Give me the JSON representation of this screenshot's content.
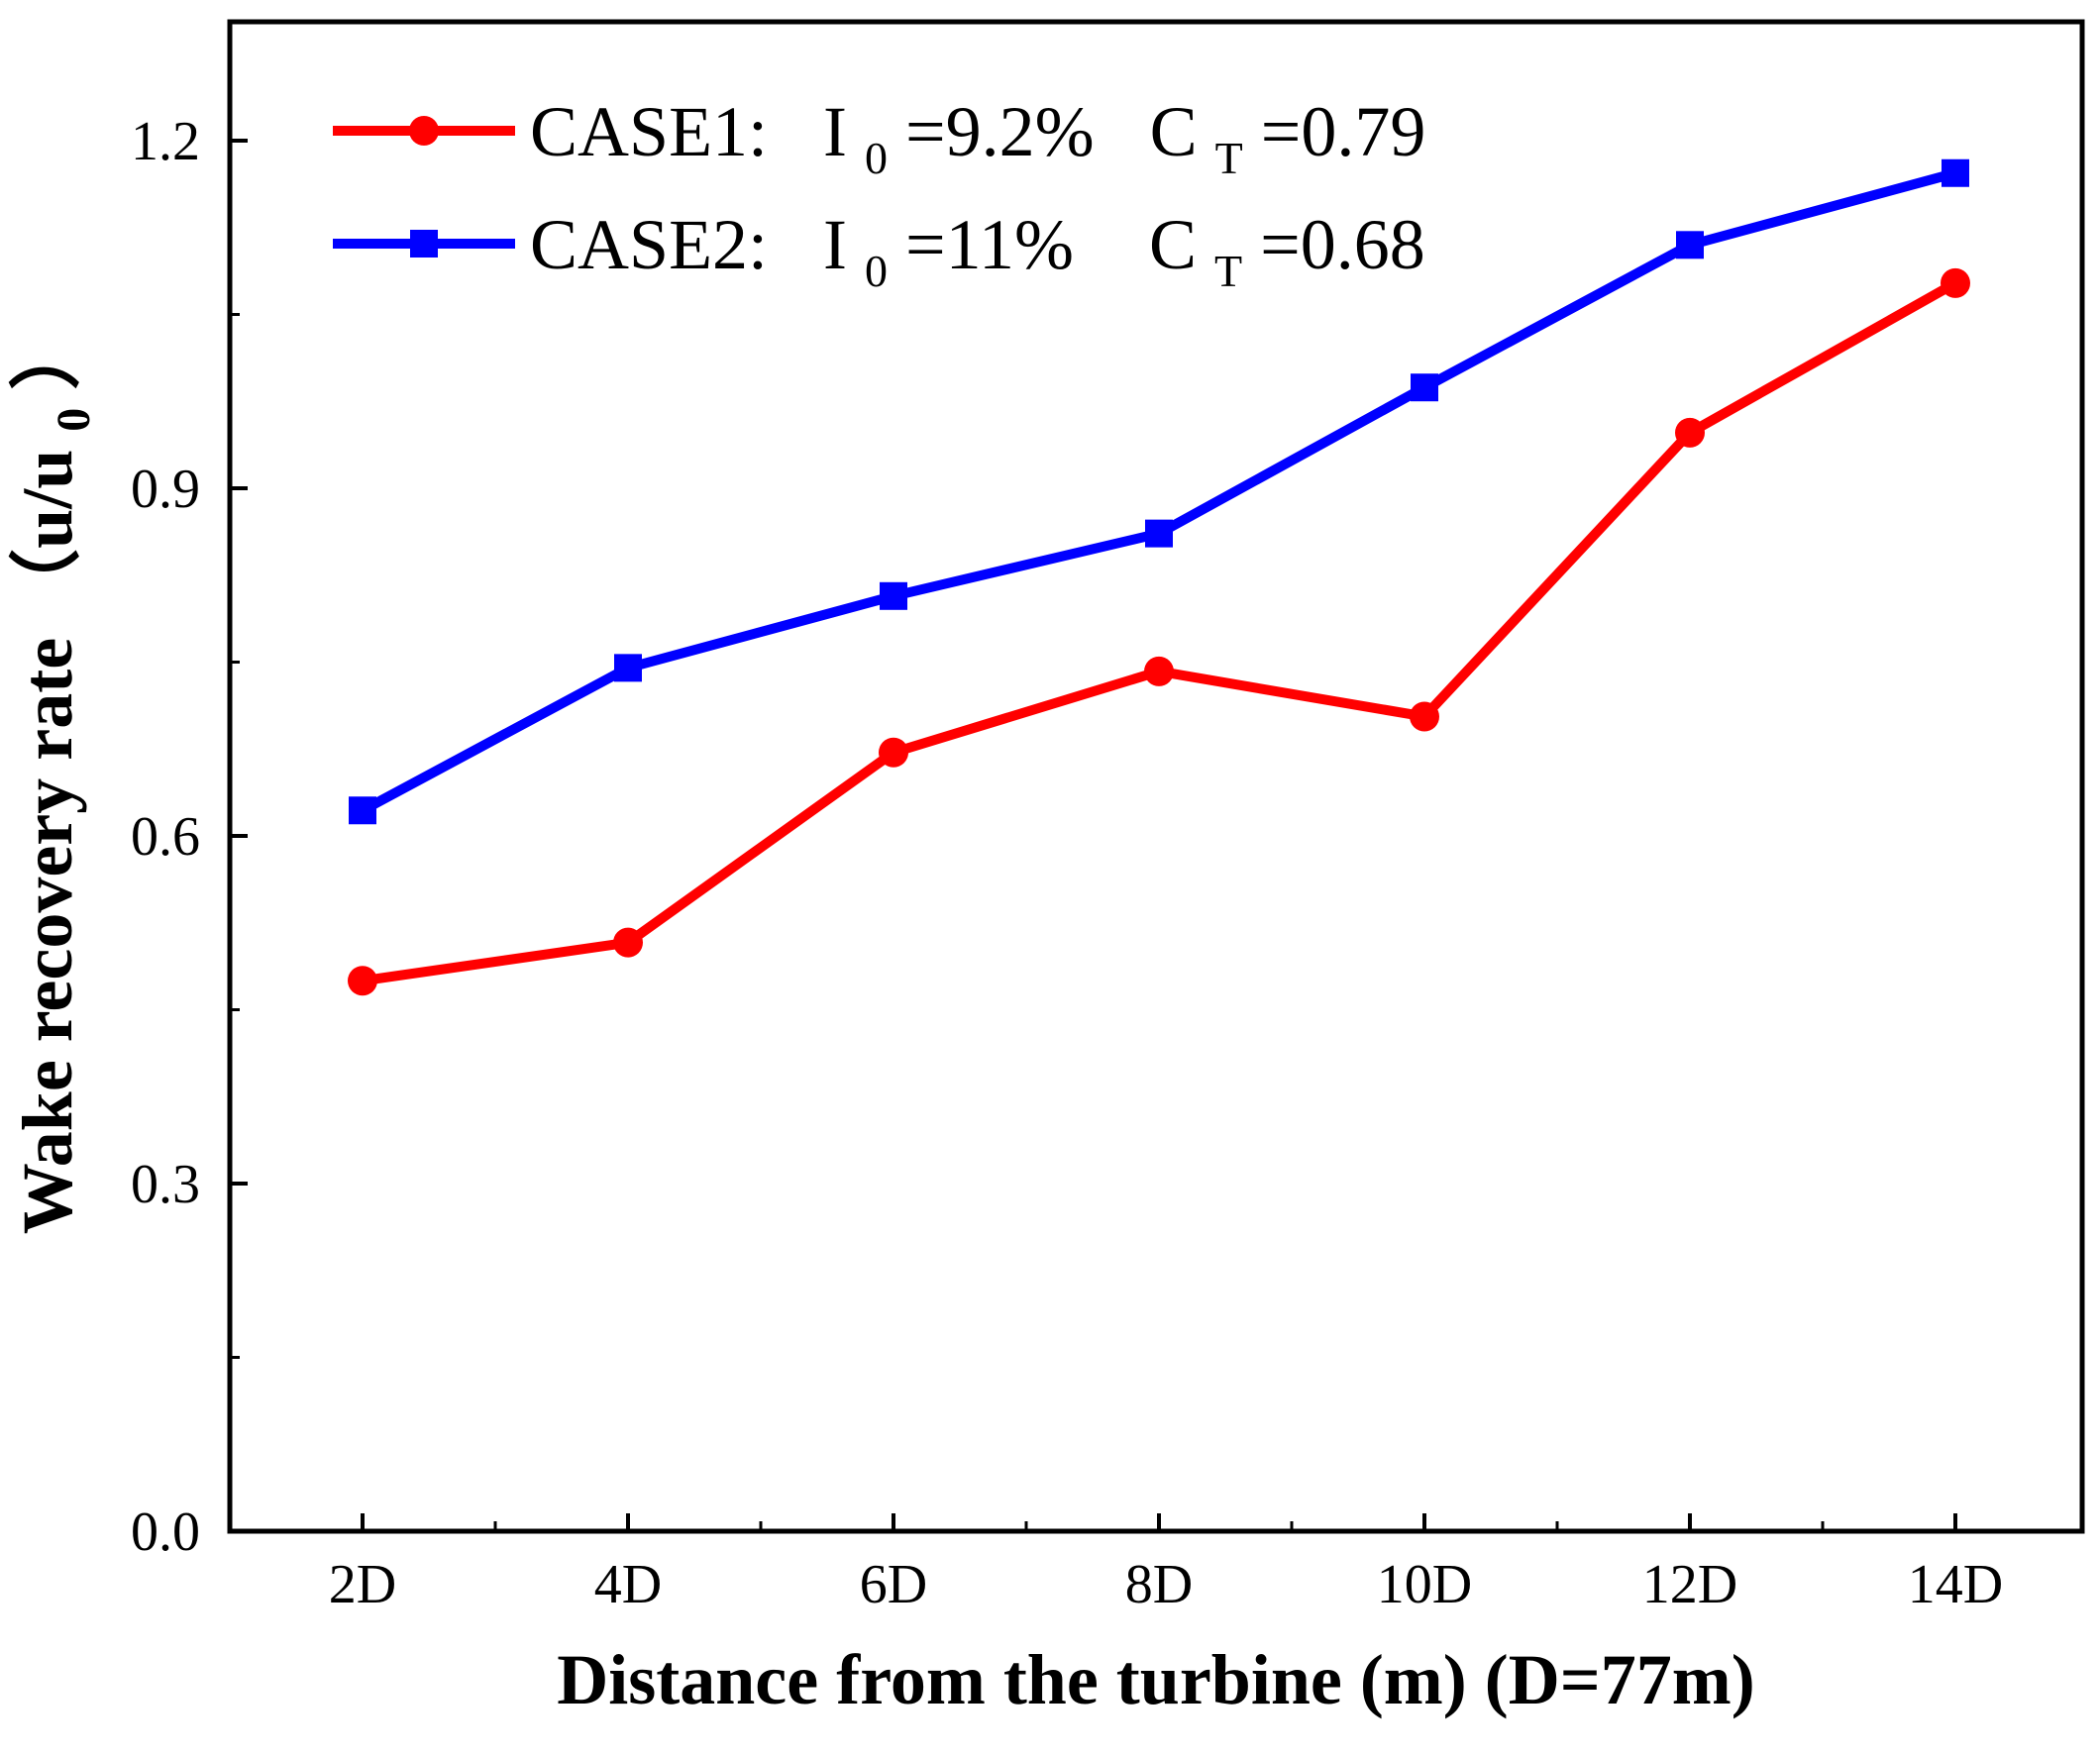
{
  "chart_data": {
    "type": "line",
    "title": "",
    "xlabel": "Distance from the turbine (m)  (D=77m)",
    "ylabel": {
      "main": "Wake recovery rate （u/u",
      "sub": "0",
      "close": "）"
    },
    "categories": [
      "2D",
      "4D",
      "6D",
      "8D",
      "10D",
      "12D",
      "14D"
    ],
    "ylim": [
      0,
      1.3
    ],
    "yticks": [
      "0.0",
      "0.3",
      "0.6",
      "0.9",
      "1.2"
    ],
    "grid": false,
    "legend_position": "top-left",
    "series": [
      {
        "name": "CASE1",
        "marker": "circle",
        "color": "#ff0000",
        "legend": {
          "case": "CASE1:",
          "i_label": "I",
          "i_sub": "0",
          "i_value": "=9.2%",
          "c_label": "C",
          "c_sub": "T",
          "c_value": "=0.79"
        },
        "values": [
          0.475,
          0.508,
          0.672,
          0.742,
          0.703,
          0.948,
          1.077
        ]
      },
      {
        "name": "CASE2",
        "marker": "square",
        "color": "#0000ff",
        "legend": {
          "case": "CASE2:",
          "i_label": "I",
          "i_sub": "0",
          "i_value": "=11%",
          "c_label": "C",
          "c_sub": "T",
          "c_value": "=0.68"
        },
        "values": [
          0.622,
          0.745,
          0.807,
          0.861,
          0.987,
          1.11,
          1.172
        ]
      }
    ]
  }
}
